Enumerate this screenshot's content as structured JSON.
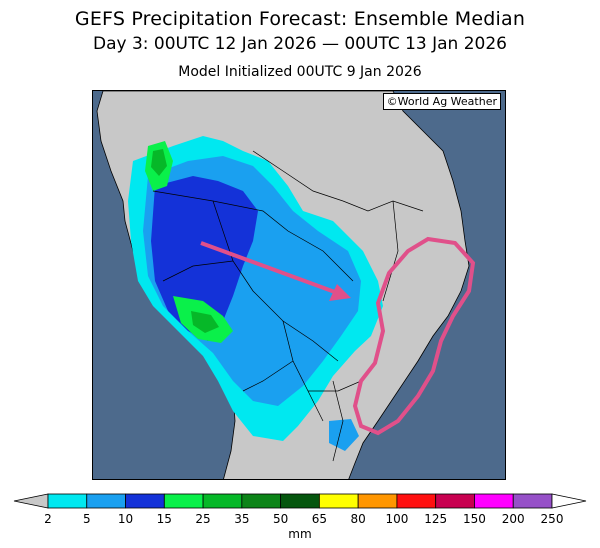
{
  "map": {
    "title": "GEFS Precipitation Forecast: Ensemble Median",
    "subtitle": "Day 3: 00UTC 12 Jan 2026 — 00UTC 13 Jan 2026",
    "initialized": "Model Initialized 00UTC 9 Jan 2026",
    "credit": "©World Ag Weather",
    "region": "South America",
    "colors": {
      "ocean": "#4d6a8c",
      "land_dry": "#c8c8c8",
      "annotation": "#e0508a"
    }
  },
  "legend": {
    "units": "mm",
    "ticks": [
      "2",
      "5",
      "10",
      "15",
      "25",
      "35",
      "50",
      "65",
      "80",
      "100",
      "125",
      "150",
      "200",
      "250"
    ],
    "colors": [
      "#00e8f0",
      "#1aa0f0",
      "#1432d8",
      "#0af04a",
      "#06b828",
      "#0c8418",
      "#05560e",
      "#ffff00",
      "#ff9600",
      "#ff1010",
      "#c80050",
      "#ff00ff",
      "#9650c8"
    ]
  }
}
